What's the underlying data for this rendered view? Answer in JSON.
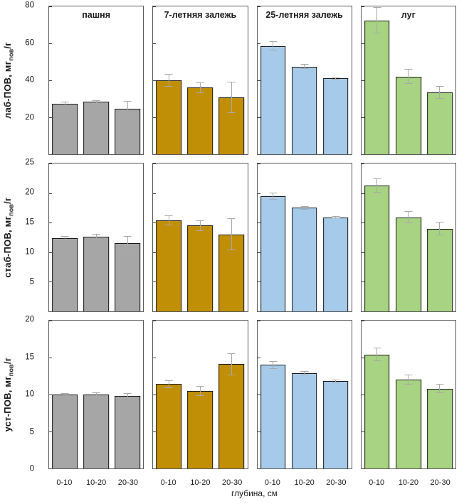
{
  "page": {
    "background": "#FFFFFF"
  },
  "xlabel": "глубина, см",
  "chart_data": {
    "type": "bar",
    "layout": "grid of 12 panels: 4 land-use columns x 3 POM-fraction rows, bars grouped by soil depth, error bars shown",
    "categories": [
      "0-10",
      "10-20",
      "20-30"
    ],
    "xlabel": "глубина, см",
    "legend_position": "none",
    "grid": "off",
    "columns": [
      {
        "title": "пашня",
        "color": "#A6A6A6"
      },
      {
        "title": "7-летняя залежь",
        "color": "#C18F06"
      },
      {
        "title": "25-летняя залежь",
        "color": "#A6CBEA"
      },
      {
        "title": "луг",
        "color": "#A7D382"
      }
    ],
    "rows": [
      {
        "ylabel": "лаб-ПОВ, мгпов/г",
        "ylabel_parts": [
          {
            "text": "лаб-ПОВ, мг",
            "sub": false
          },
          {
            "text": "пов",
            "sub": true
          },
          {
            "text": "/г",
            "sub": false
          }
        ],
        "ylim": [
          0,
          80
        ],
        "yticks": [
          20,
          40,
          60,
          80
        ],
        "series": [
          {
            "column": "пашня",
            "values": [
              27.5,
              28.3,
              24.8
            ],
            "errors": [
              1.0,
              1.0,
              4.0
            ]
          },
          {
            "column": "7-летняя залежь",
            "values": [
              40.0,
              36.0,
              30.8
            ],
            "errors": [
              3.5,
              3.0,
              8.5
            ]
          },
          {
            "column": "25-летняя залежь",
            "values": [
              58.5,
              47.5,
              41.0
            ],
            "errors": [
              2.5,
              1.5,
              0.5
            ]
          },
          {
            "column": "луг",
            "values": [
              72.5,
              42.0,
              33.5
            ],
            "errors": [
              7.0,
              4.0,
              3.5
            ]
          }
        ]
      },
      {
        "ylabel": "стаб-ПОВ, мгпов/г",
        "ylabel_parts": [
          {
            "text": "стаб-ПОВ, мг",
            "sub": false
          },
          {
            "text": "пов",
            "sub": true
          },
          {
            "text": "/г",
            "sub": false
          }
        ],
        "ylim": [
          0,
          25
        ],
        "yticks": [
          5,
          10,
          15,
          20,
          25
        ],
        "series": [
          {
            "column": "пашня",
            "values": [
              12.4,
              12.6,
              11.5
            ],
            "errors": [
              0.3,
              0.5,
              1.2
            ]
          },
          {
            "column": "7-летняя залежь",
            "values": [
              15.4,
              14.5,
              13.0
            ],
            "errors": [
              0.8,
              0.9,
              2.7
            ]
          },
          {
            "column": "25-летняя залежь",
            "values": [
              19.5,
              17.5,
              15.9
            ],
            "errors": [
              0.6,
              0.3,
              0.2
            ]
          },
          {
            "column": "луг",
            "values": [
              21.3,
              15.9,
              14.0
            ],
            "errors": [
              1.2,
              1.0,
              1.2
            ]
          }
        ]
      },
      {
        "ylabel": "уст-ПОВ, мгпов/г",
        "ylabel_parts": [
          {
            "text": "уст-ПОВ, мг",
            "sub": false
          },
          {
            "text": "пов",
            "sub": true
          },
          {
            "text": "/г",
            "sub": false
          }
        ],
        "ylim": [
          0,
          20
        ],
        "yticks": [
          0,
          5,
          10,
          15,
          20
        ],
        "series": [
          {
            "column": "пашня",
            "values": [
              10.0,
              10.0,
              9.8
            ],
            "errors": [
              0.15,
              0.25,
              0.4
            ]
          },
          {
            "column": "7-летняя залежь",
            "values": [
              11.4,
              10.5,
              14.1
            ],
            "errors": [
              0.5,
              0.7,
              1.5
            ]
          },
          {
            "column": "25-летняя залежь",
            "values": [
              14.0,
              12.9,
              11.8
            ],
            "errors": [
              0.5,
              0.3,
              0.2
            ]
          },
          {
            "column": "луг",
            "values": [
              15.4,
              12.0,
              10.8
            ],
            "errors": [
              0.9,
              0.7,
              0.6
            ]
          }
        ]
      }
    ],
    "styles": {
      "bar_edge_color": "#1A1A1A",
      "error_bar_color": "#A9A9A9",
      "panel_border_color": "#595959"
    }
  }
}
